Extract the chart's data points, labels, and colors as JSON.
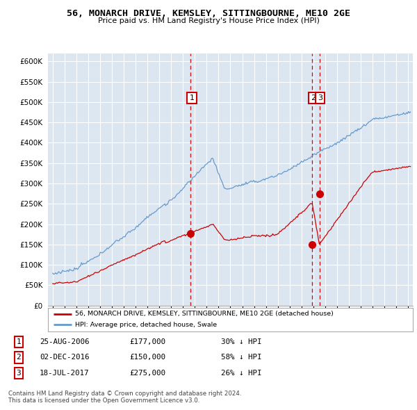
{
  "title": "56, MONARCH DRIVE, KEMSLEY, SITTINGBOURNE, ME10 2GE",
  "subtitle": "Price paid vs. HM Land Registry's House Price Index (HPI)",
  "property_label": "56, MONARCH DRIVE, KEMSLEY, SITTINGBOURNE, ME10 2GE (detached house)",
  "hpi_label": "HPI: Average price, detached house, Swale",
  "property_color": "#cc0000",
  "hpi_color": "#6699cc",
  "chart_bg_color": "#dce6f1",
  "background_color": "#ffffff",
  "grid_color": "#ffffff",
  "ylim": [
    0,
    620000
  ],
  "ytick_values": [
    0,
    50000,
    100000,
    150000,
    200000,
    250000,
    300000,
    350000,
    400000,
    450000,
    500000,
    550000,
    600000
  ],
  "sale_dates_num": [
    2006.65,
    2016.92,
    2017.54
  ],
  "sale_prices": [
    177000,
    150000,
    275000
  ],
  "sale_labels": [
    "1",
    "2",
    "3"
  ],
  "vline_color": "#cc0000",
  "footer_line1": "Contains HM Land Registry data © Crown copyright and database right 2024.",
  "footer_line2": "This data is licensed under the Open Government Licence v3.0.",
  "table_rows": [
    {
      "num": "1",
      "date": "25-AUG-2006",
      "price": "£177,000",
      "hpi": "30% ↓ HPI"
    },
    {
      "num": "2",
      "date": "02-DEC-2016",
      "price": "£150,000",
      "hpi": "58% ↓ HPI"
    },
    {
      "num": "3",
      "date": "18-JUL-2017",
      "price": "£275,000",
      "hpi": "26% ↓ HPI"
    }
  ]
}
